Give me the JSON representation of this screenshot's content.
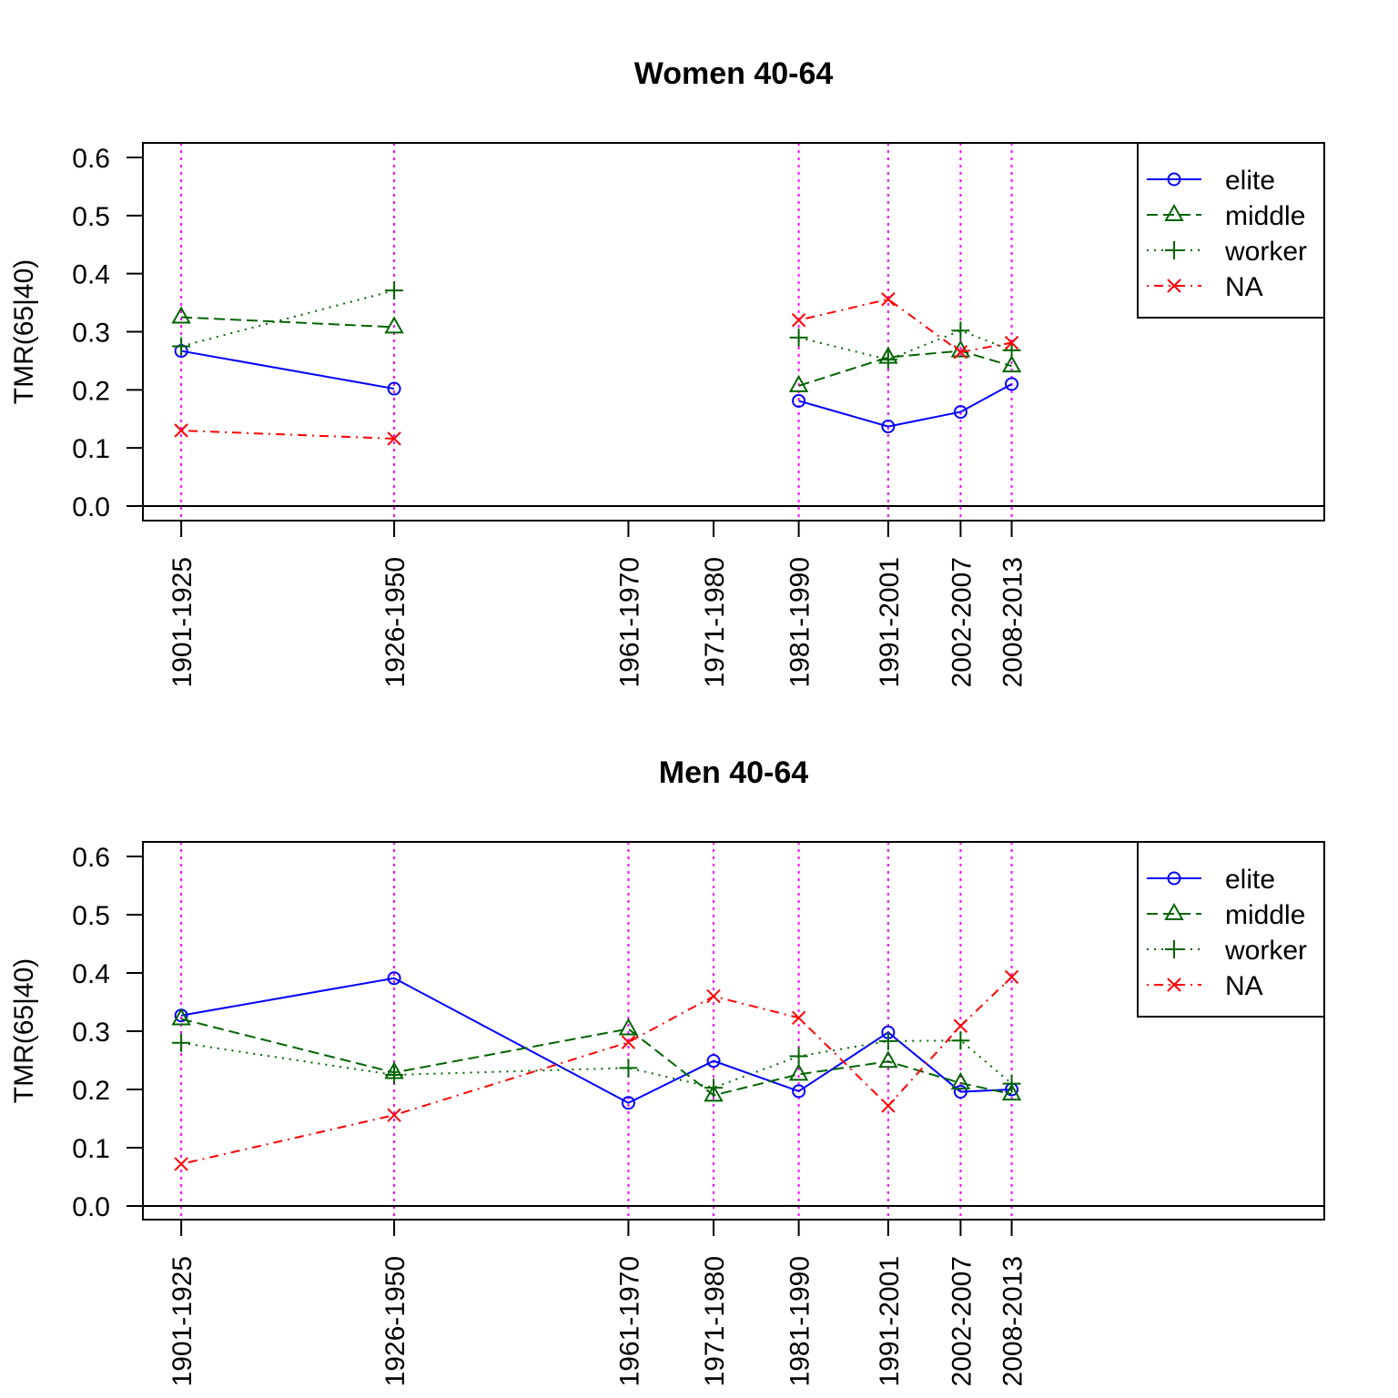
{
  "chart_data": [
    {
      "type": "line",
      "title": "Women 40-64",
      "xlabel": "",
      "ylabel": "TMR(65|40)",
      "ylim": [
        0,
        0.6
      ],
      "yticks": [
        "0.0",
        "0.1",
        "0.2",
        "0.3",
        "0.4",
        "0.5",
        "0.6"
      ],
      "grid": false,
      "legend_position": "top-right",
      "x": [
        1913,
        1938,
        1965.5,
        1975.5,
        1985.5,
        1996,
        2004.5,
        2010.5
      ],
      "categories": [
        "1901-1925",
        "1926-1950",
        "1961-1970",
        "1971-1980",
        "1981-1990",
        "1991-2001",
        "2002-2007",
        "2008-2013"
      ],
      "reference_lines": [
        1913,
        1938,
        1985.5,
        1996,
        2004.5,
        2010.5
      ],
      "series": [
        {
          "name": "elite",
          "color": "#0000ff",
          "marker": "circle",
          "line": "solid",
          "values": [
            0.267,
            0.202,
            null,
            null,
            0.181,
            0.137,
            0.162,
            0.21
          ]
        },
        {
          "name": "middle",
          "color": "#006400",
          "marker": "triangle",
          "line": "dashed",
          "values": [
            0.325,
            0.308,
            null,
            null,
            0.207,
            0.256,
            0.267,
            0.241
          ]
        },
        {
          "name": "worker",
          "color": "#006400",
          "marker": "plus",
          "line": "dotted",
          "values": [
            0.275,
            0.371,
            null,
            null,
            0.29,
            0.252,
            0.302,
            0.268
          ]
        },
        {
          "name": "NA",
          "color": "#ff0000",
          "marker": "cross",
          "line": "dotdash",
          "values": [
            0.13,
            0.116,
            null,
            null,
            0.32,
            0.356,
            0.265,
            0.281
          ]
        }
      ]
    },
    {
      "type": "line",
      "title": "Men 40-64",
      "xlabel": "",
      "ylabel": "TMR(65|40)",
      "ylim": [
        0,
        0.6
      ],
      "yticks": [
        "0.0",
        "0.1",
        "0.2",
        "0.3",
        "0.4",
        "0.5",
        "0.6"
      ],
      "grid": false,
      "legend_position": "top-right",
      "x": [
        1913,
        1938,
        1965.5,
        1975.5,
        1985.5,
        1996,
        2004.5,
        2010.5
      ],
      "categories": [
        "1901-1925",
        "1926-1950",
        "1961-1970",
        "1971-1980",
        "1981-1990",
        "1991-2001",
        "2002-2007",
        "2008-2013"
      ],
      "reference_lines": [
        1913,
        1938,
        1965.5,
        1975.5,
        1985.5,
        1996,
        2004.5,
        2010.5
      ],
      "series": [
        {
          "name": "elite",
          "color": "#0000ff",
          "marker": "circle",
          "line": "solid",
          "values": [
            0.327,
            0.391,
            0.177,
            0.249,
            0.197,
            0.298,
            0.196,
            0.2
          ]
        },
        {
          "name": "middle",
          "color": "#006400",
          "marker": "triangle",
          "line": "dashed",
          "values": [
            0.321,
            0.229,
            0.304,
            0.19,
            0.226,
            0.248,
            0.211,
            0.192
          ]
        },
        {
          "name": "worker",
          "color": "#006400",
          "marker": "plus",
          "line": "dotted",
          "values": [
            0.28,
            0.225,
            0.237,
            0.203,
            0.257,
            0.283,
            0.284,
            0.21
          ]
        },
        {
          "name": "NA",
          "color": "#ff0000",
          "marker": "cross",
          "line": "dotdash",
          "values": [
            0.072,
            0.156,
            0.281,
            0.36,
            0.323,
            0.172,
            0.309,
            0.393
          ]
        }
      ]
    }
  ]
}
